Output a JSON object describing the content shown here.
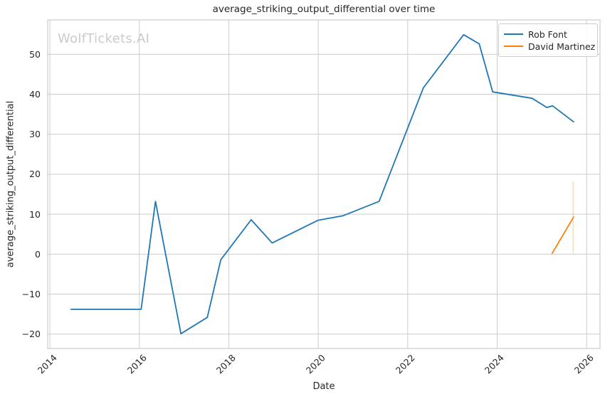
{
  "watermark": {
    "text": "WolfTickets.AI"
  },
  "colors": {
    "grid": "#cccccc",
    "frame": "#cccccc",
    "text": "#262626",
    "watermark": "#cbcbcb"
  },
  "chart_data": {
    "type": "line",
    "title": "average_striking_output_differential over time",
    "xlabel": "Date",
    "ylabel": "average_striking_output_differential",
    "grid": true,
    "legend_position": "upper right",
    "x_domain": [
      2013.95,
      2026.3
    ],
    "y_domain": [
      -23.6,
      58.6
    ],
    "x_ticks": [
      {
        "label": "2014",
        "value": 2014
      },
      {
        "label": "2016",
        "value": 2016
      },
      {
        "label": "2018",
        "value": 2018
      },
      {
        "label": "2020",
        "value": 2020
      },
      {
        "label": "2022",
        "value": 2022
      },
      {
        "label": "2024",
        "value": 2024
      },
      {
        "label": "2026",
        "value": 2026
      }
    ],
    "y_ticks": [
      {
        "label": "−20",
        "value": -20
      },
      {
        "label": "−10",
        "value": -10
      },
      {
        "label": "0",
        "value": 0
      },
      {
        "label": "10",
        "value": 10
      },
      {
        "label": "20",
        "value": 20
      },
      {
        "label": "30",
        "value": 30
      },
      {
        "label": "40",
        "value": 40
      },
      {
        "label": "50",
        "value": 50
      }
    ],
    "series": [
      {
        "name": "Rob Font",
        "color": "#1f77b4",
        "points": [
          [
            2014.47,
            -13.8
          ],
          [
            2016.04,
            -13.8
          ],
          [
            2016.36,
            13.2
          ],
          [
            2016.93,
            -19.9
          ],
          [
            2017.52,
            -15.8
          ],
          [
            2017.82,
            -1.4
          ],
          [
            2018.5,
            8.6
          ],
          [
            2018.97,
            2.8
          ],
          [
            2020.0,
            8.5
          ],
          [
            2020.55,
            9.6
          ],
          [
            2021.36,
            13.2
          ],
          [
            2022.35,
            41.6
          ],
          [
            2023.25,
            54.9
          ],
          [
            2023.6,
            52.6
          ],
          [
            2023.9,
            40.6
          ],
          [
            2024.78,
            39.0
          ],
          [
            2025.11,
            36.7
          ],
          [
            2025.24,
            37.1
          ],
          [
            2025.71,
            33.1
          ]
        ],
        "ci_segments": []
      },
      {
        "name": "David Martinez",
        "color": "#ff7f0e",
        "points": [
          [
            2025.23,
            0.2
          ],
          [
            2025.71,
            9.3
          ]
        ],
        "ci_segments": [
          {
            "x": 2025.7,
            "y1": 0.2,
            "y2": 18.2
          }
        ]
      }
    ]
  }
}
